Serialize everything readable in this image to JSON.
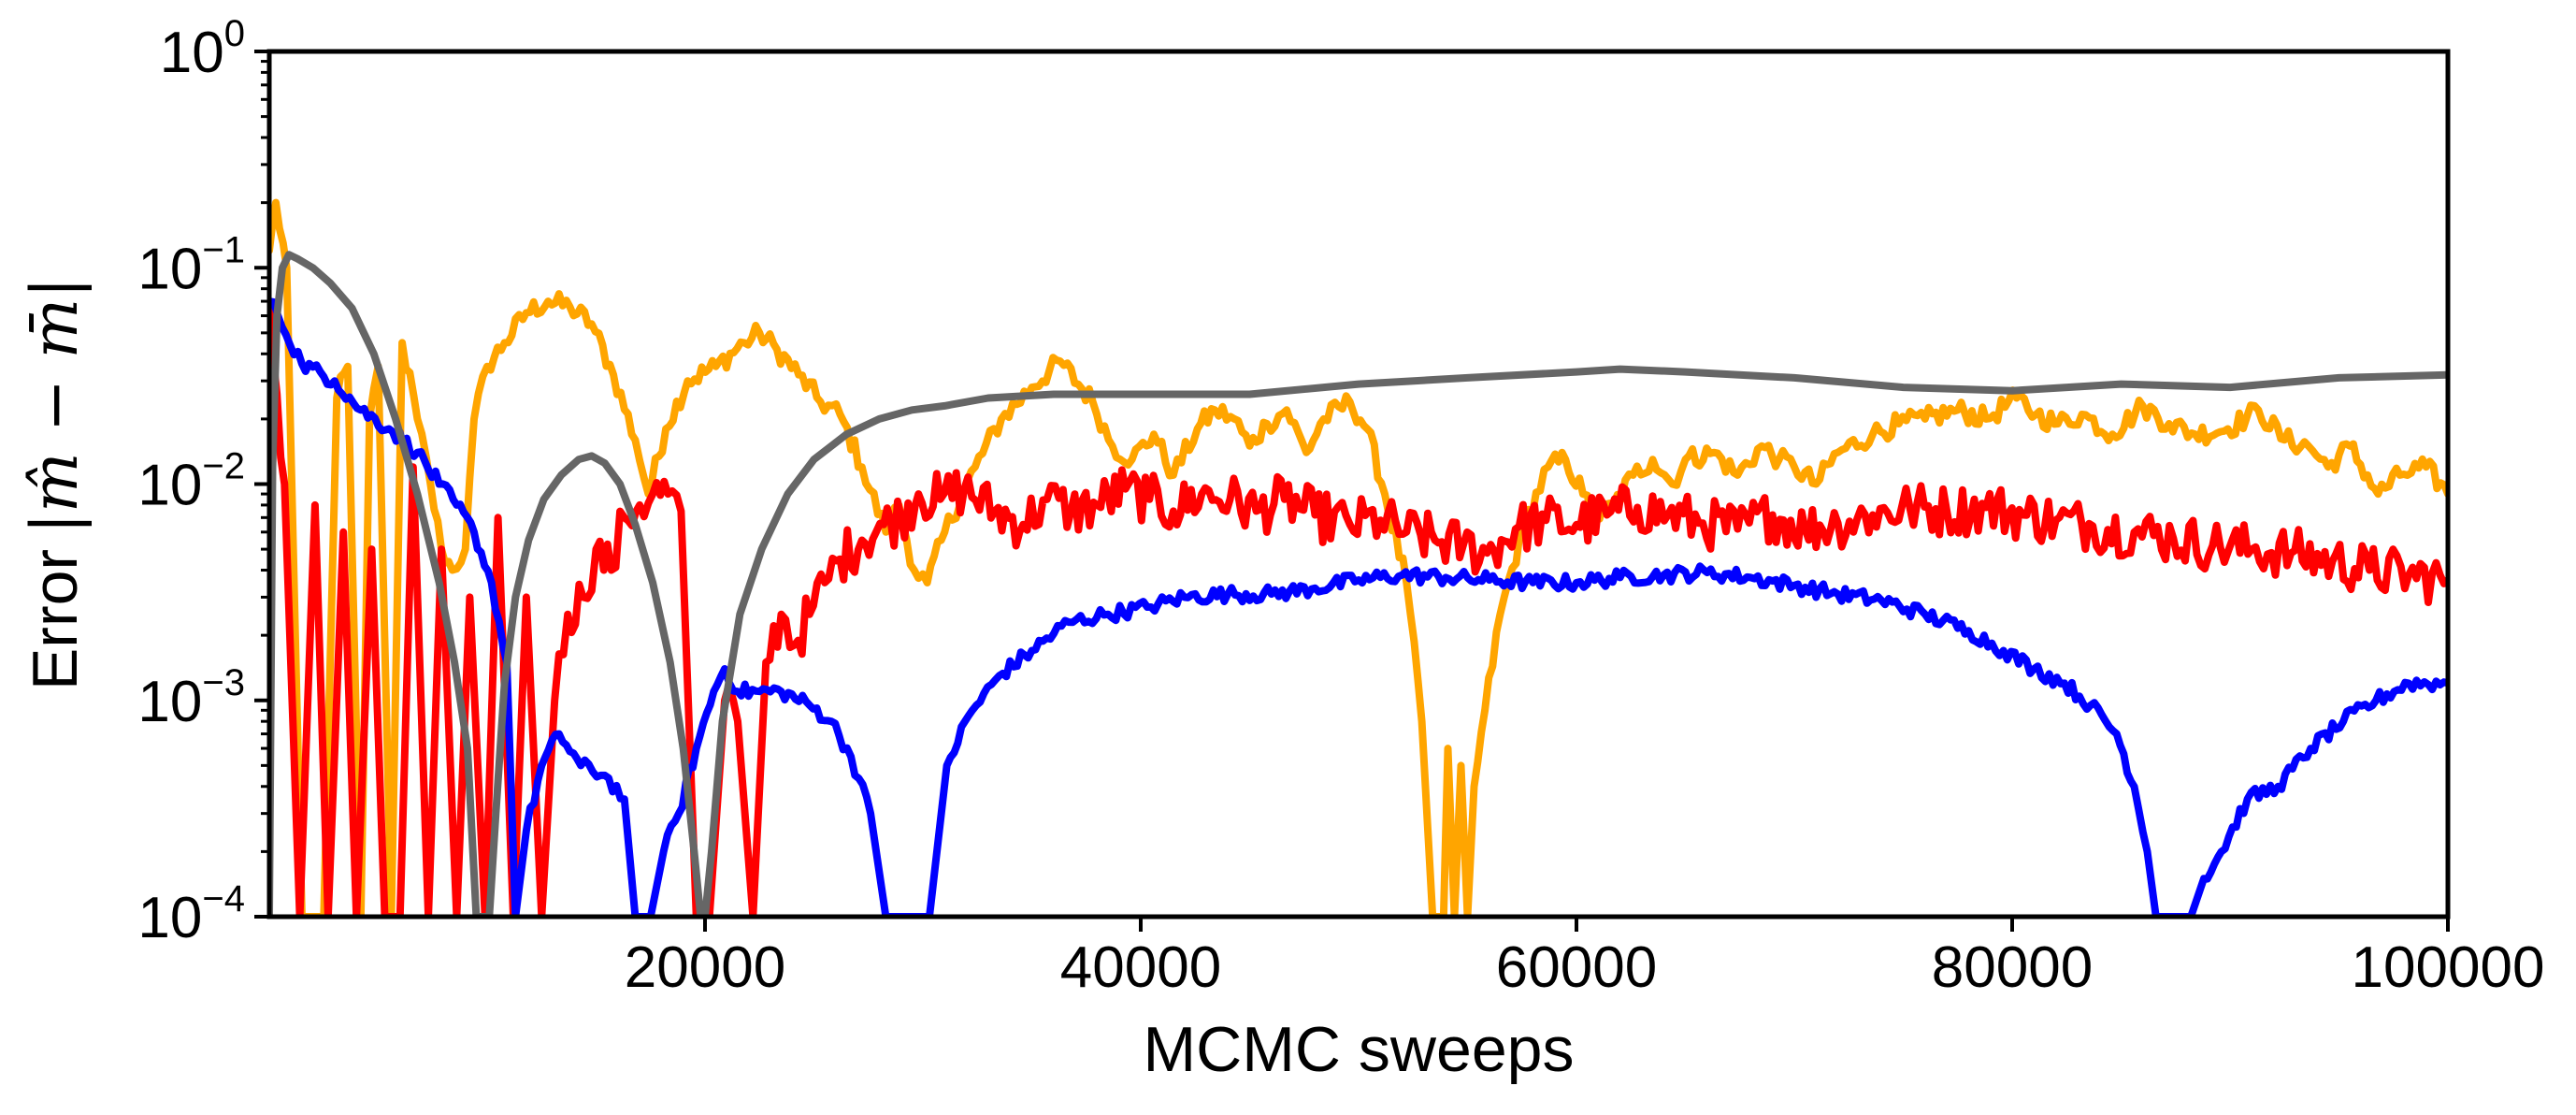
{
  "chart_data": {
    "type": "line",
    "xlabel": "MCMC sweeps",
    "ylabel": "Error |m̂ − m̄|",
    "ylabel_prefix": "Error",
    "ylabel_math": "|m̂ − m̄|",
    "x_scale": "linear",
    "y_scale": "log",
    "xlim": [
      0,
      100000
    ],
    "ylim": [
      0.0001,
      1
    ],
    "grid": false,
    "x_ticks": [
      20000,
      40000,
      60000,
      80000,
      100000
    ],
    "x_tick_labels": [
      "20000",
      "40000",
      "60000",
      "80000",
      "100000"
    ],
    "y_ticks": [
      0.0001,
      0.001,
      0.01,
      0.1,
      1
    ],
    "y_tick_labels": [
      {
        "base": "10",
        "exp": "−4"
      },
      {
        "base": "10",
        "exp": "−3"
      },
      {
        "base": "10",
        "exp": "−2"
      },
      {
        "base": "10",
        "exp": "−1"
      },
      {
        "base": "10",
        "exp": "0"
      }
    ],
    "series": [
      {
        "color": "#ffa500",
        "noise": 0.05,
        "x": [
          0,
          300,
          800,
          1500,
          2500,
          3100,
          3600,
          4200,
          4600,
          5000,
          5600,
          6100,
          6800,
          7400,
          7900,
          8400,
          9000,
          9400,
          10000,
          10800,
          11800,
          12800,
          13800,
          14800,
          15800,
          16800,
          17400,
          18200,
          19200,
          20500,
          21800,
          22500,
          23300,
          24300,
          25300,
          26200,
          27200,
          28300,
          28900,
          29600,
          30200,
          31000,
          32400,
          33600,
          35000,
          36300,
          37800,
          38700,
          39600,
          40600,
          41500,
          42600,
          43400,
          44300,
          45000,
          45800,
          46700,
          47600,
          48400,
          49600,
          50400,
          51200,
          52200,
          52900,
          53400,
          53900,
          54100,
          54400,
          54700,
          55000,
          55300,
          55800,
          56500,
          57600,
          58700,
          59500,
          60300,
          60900,
          61700,
          62600,
          63500,
          64400,
          65000,
          66300,
          67400,
          68500,
          69300,
          70000,
          71000,
          72000,
          73600,
          74800,
          76000,
          77500,
          78800,
          80200,
          81100,
          82100,
          83200,
          84600,
          86000,
          87200,
          88400,
          89900,
          91300,
          92500,
          93600,
          94500,
          95500,
          96800,
          97800,
          99000,
          100000
        ],
        "y": [
          0.12,
          0.2,
          0.1,
          0.0001,
          0.0001,
          0.025,
          0.035,
          0.0001,
          0.02,
          0.035,
          0.0001,
          0.045,
          0.02,
          0.01,
          0.005,
          0.004,
          0.005,
          0.02,
          0.035,
          0.045,
          0.062,
          0.07,
          0.066,
          0.055,
          0.032,
          0.016,
          0.009,
          0.018,
          0.03,
          0.035,
          0.045,
          0.05,
          0.042,
          0.032,
          0.024,
          0.021,
          0.012,
          0.006,
          0.008,
          0.004,
          0.0035,
          0.006,
          0.012,
          0.02,
          0.028,
          0.037,
          0.024,
          0.015,
          0.013,
          0.017,
          0.011,
          0.018,
          0.022,
          0.02,
          0.015,
          0.019,
          0.022,
          0.014,
          0.02,
          0.024,
          0.018,
          0.009,
          0.0035,
          0.0008,
          0.0001,
          0.0001,
          0.0006,
          0.0001,
          0.0005,
          0.0001,
          0.0004,
          0.0009,
          0.0025,
          0.0065,
          0.012,
          0.013,
          0.009,
          0.007,
          0.008,
          0.011,
          0.013,
          0.01,
          0.013,
          0.014,
          0.011,
          0.015,
          0.013,
          0.012,
          0.01,
          0.014,
          0.017,
          0.019,
          0.02,
          0.022,
          0.02,
          0.025,
          0.021,
          0.019,
          0.021,
          0.017,
          0.023,
          0.019,
          0.017,
          0.018,
          0.022,
          0.016,
          0.015,
          0.012,
          0.015,
          0.009,
          0.011,
          0.012,
          0.009
        ]
      },
      {
        "color": "#ff0000",
        "noise": 0.12,
        "x": [
          0,
          700,
          1400,
          2100,
          2700,
          3400,
          4000,
          4700,
          5300,
          6000,
          6600,
          7300,
          7900,
          8600,
          9200,
          9900,
          10500,
          11200,
          11800,
          12500,
          13100,
          13700,
          14400,
          15000,
          15700,
          16300,
          17000,
          17600,
          18300,
          18900,
          19600,
          20200,
          20900,
          21500,
          22200,
          22800,
          23500,
          24100,
          24800,
          25500,
          26200,
          27200,
          28200,
          29000,
          29800,
          30800,
          31900,
          33300,
          34600,
          35700,
          36800,
          38000,
          39300,
          40400,
          41500,
          42800,
          44100,
          45300,
          46600,
          48000,
          49600,
          51000,
          52200,
          53500,
          54800,
          55900,
          57200,
          58600,
          60000,
          61400,
          62800,
          64200,
          65800,
          67400,
          69000,
          70500,
          72000,
          73600,
          75300,
          77000,
          78800,
          80500,
          82000,
          83700,
          85600,
          87400,
          89200,
          91000,
          92800,
          94700,
          96400,
          98200,
          100000
        ],
        "y": [
          0.07,
          0.01,
          0.0001,
          0.008,
          0.0001,
          0.006,
          0.0001,
          0.005,
          0.0001,
          0.0001,
          0.012,
          0.0001,
          0.005,
          0.0001,
          0.003,
          0.0001,
          0.007,
          0.0001,
          0.003,
          0.0001,
          0.001,
          0.0025,
          0.003,
          0.005,
          0.004,
          0.007,
          0.008,
          0.009,
          0.009,
          0.0075,
          0.0001,
          0.0001,
          0.001,
          0.0008,
          0.0001,
          0.0015,
          0.0025,
          0.0018,
          0.0025,
          0.0035,
          0.0045,
          0.0055,
          0.0065,
          0.007,
          0.009,
          0.0085,
          0.0095,
          0.0075,
          0.0065,
          0.0085,
          0.0075,
          0.008,
          0.0095,
          0.0085,
          0.0075,
          0.009,
          0.0085,
          0.0075,
          0.0085,
          0.0072,
          0.0065,
          0.0068,
          0.006,
          0.0055,
          0.0052,
          0.0048,
          0.0062,
          0.0068,
          0.0065,
          0.0072,
          0.0078,
          0.0072,
          0.0066,
          0.0062,
          0.0072,
          0.0062,
          0.0066,
          0.0072,
          0.0078,
          0.0075,
          0.0078,
          0.0072,
          0.0068,
          0.0064,
          0.006,
          0.0056,
          0.0052,
          0.005,
          0.0048,
          0.0044,
          0.004,
          0.0038,
          0.0036
        ]
      },
      {
        "color": "#0000ff",
        "noise": 0.035,
        "x": [
          0,
          400,
          1500,
          3000,
          4200,
          5500,
          6800,
          7800,
          8600,
          9400,
          10200,
          10900,
          11300,
          11800,
          12500,
          13300,
          14300,
          15400,
          16300,
          16800,
          17100,
          17500,
          18100,
          18800,
          19600,
          20400,
          20900,
          21500,
          22500,
          23500,
          24800,
          25800,
          26700,
          27600,
          28300,
          28800,
          29700,
          30300,
          31100,
          32100,
          33500,
          35000,
          36700,
          38500,
          40300,
          42000,
          44000,
          46000,
          48000,
          50000,
          52000,
          54000,
          56000,
          58000,
          60000,
          62000,
          64000,
          66000,
          68000,
          70000,
          72000,
          74000,
          76000,
          78000,
          79600,
          81000,
          82400,
          83600,
          84800,
          85600,
          86200,
          86600,
          87500,
          88200,
          88800,
          89600,
          90800,
          92200,
          93700,
          95200,
          96700,
          98200,
          100000
        ],
        "y": [
          0.07,
          0.06,
          0.036,
          0.03,
          0.022,
          0.018,
          0.014,
          0.01,
          0.008,
          0.006,
          0.0035,
          0.0015,
          0.0001,
          0.00025,
          0.0005,
          0.0007,
          0.0005,
          0.00045,
          0.00035,
          0.0001,
          0.0001,
          0.0001,
          0.0002,
          0.0003,
          0.0006,
          0.0011,
          0.0014,
          0.0011,
          0.0011,
          0.0011,
          0.00095,
          0.0008,
          0.00055,
          0.0003,
          0.0001,
          0.0001,
          0.0001,
          0.0001,
          0.0005,
          0.00085,
          0.0013,
          0.0017,
          0.0023,
          0.0025,
          0.0027,
          0.003,
          0.0031,
          0.0031,
          0.0033,
          0.0036,
          0.0038,
          0.0037,
          0.0036,
          0.0035,
          0.0035,
          0.0037,
          0.0038,
          0.0039,
          0.0037,
          0.0034,
          0.0031,
          0.0029,
          0.0025,
          0.0021,
          0.0017,
          0.0014,
          0.0012,
          0.00095,
          0.0007,
          0.0004,
          0.0002,
          0.0001,
          0.0001,
          0.0001,
          0.00015,
          0.0002,
          0.00035,
          0.0004,
          0.0006,
          0.0008,
          0.001,
          0.0012,
          0.0012
        ]
      },
      {
        "color": "#666666",
        "noise": 0,
        "x": [
          0,
          150,
          350,
          600,
          900,
          1300,
          2000,
          2800,
          3800,
          4800,
          5800,
          6800,
          7800,
          8500,
          9100,
          9500,
          9800,
          10100,
          10400,
          10800,
          11300,
          11900,
          12600,
          13400,
          14200,
          14800,
          15400,
          16100,
          16800,
          17600,
          18400,
          19000,
          19500,
          19800,
          20000,
          20300,
          20800,
          21600,
          22600,
          23800,
          25000,
          26500,
          28000,
          29500,
          31000,
          33000,
          36000,
          40000,
          45000,
          50000,
          55000,
          60000,
          62000,
          65000,
          70000,
          75000,
          80000,
          85000,
          90000,
          95000,
          100000
        ],
        "y": [
          0.0001,
          0.012,
          0.06,
          0.1,
          0.115,
          0.11,
          0.1,
          0.085,
          0.065,
          0.04,
          0.02,
          0.009,
          0.0035,
          0.0015,
          0.0006,
          0.0001,
          0.0001,
          0.0001,
          0.0003,
          0.0012,
          0.003,
          0.0055,
          0.0085,
          0.011,
          0.013,
          0.0135,
          0.0125,
          0.01,
          0.0065,
          0.0035,
          0.0015,
          0.0006,
          0.0002,
          0.0001,
          0.0001,
          0.0002,
          0.0008,
          0.0025,
          0.005,
          0.009,
          0.013,
          0.017,
          0.02,
          0.022,
          0.023,
          0.025,
          0.026,
          0.026,
          0.026,
          0.029,
          0.031,
          0.033,
          0.034,
          0.033,
          0.031,
          0.028,
          0.027,
          0.029,
          0.028,
          0.031,
          0.032
        ]
      }
    ]
  }
}
